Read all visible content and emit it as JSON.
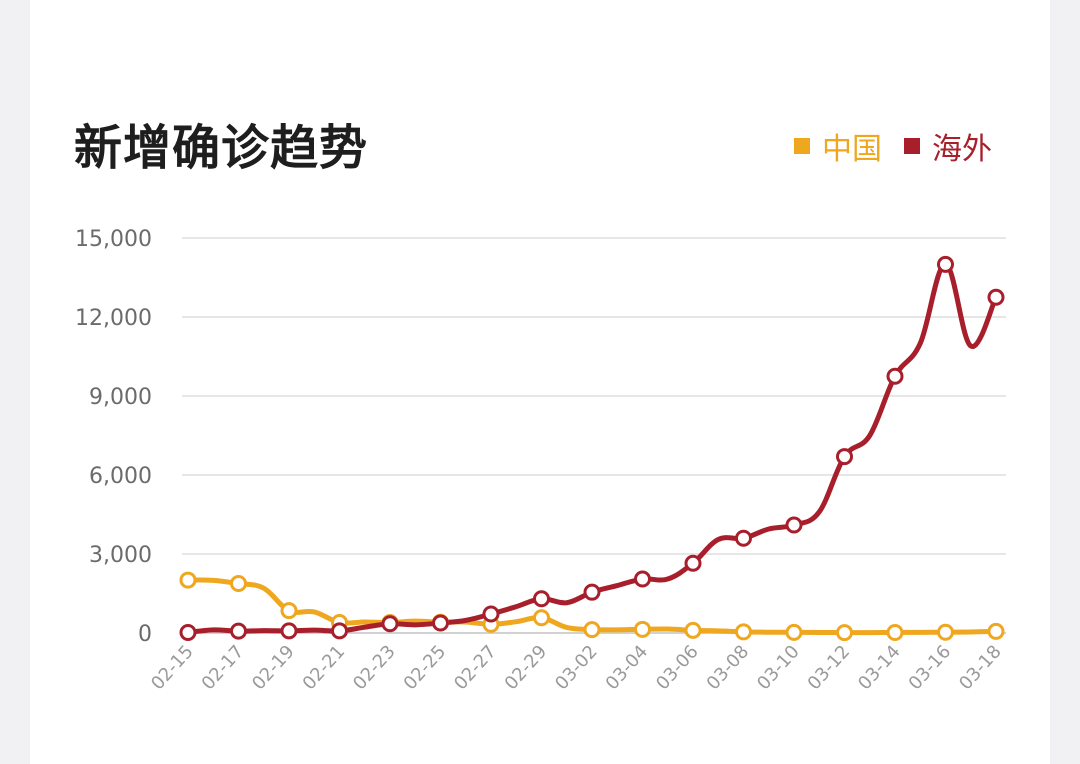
{
  "chart_data": {
    "type": "line",
    "title": "新增确诊趋势",
    "xlabel": "",
    "ylabel": "",
    "ylim": [
      0,
      15000
    ],
    "yticks": [
      0,
      3000,
      6000,
      9000,
      12000,
      15000
    ],
    "ytick_labels": [
      "0",
      "3,000",
      "6,000",
      "9,000",
      "12,000",
      "15,000"
    ],
    "x": [
      "02-15",
      "02-16",
      "02-17",
      "02-18",
      "02-19",
      "02-20",
      "02-21",
      "02-22",
      "02-23",
      "02-24",
      "02-25",
      "02-26",
      "02-27",
      "02-28",
      "02-29",
      "03-01",
      "03-02",
      "03-03",
      "03-04",
      "03-05",
      "03-06",
      "03-07",
      "03-08",
      "03-09",
      "03-10",
      "03-11",
      "03-12",
      "03-13",
      "03-14",
      "03-15",
      "03-16",
      "03-17",
      "03-18"
    ],
    "xtick_labels": [
      "02-15",
      "02-17",
      "02-19",
      "02-21",
      "02-23",
      "02-25",
      "02-27",
      "02-29",
      "03-02",
      "03-04",
      "03-06",
      "03-08",
      "03-10",
      "03-12",
      "03-14",
      "03-16",
      "03-18"
    ],
    "grid": true,
    "legend": "top-right",
    "series": [
      {
        "name": "中国",
        "color": "#efa71f",
        "values": [
          2010,
          2000,
          1880,
          1700,
          850,
          800,
          400,
          420,
          400,
          450,
          410,
          420,
          330,
          430,
          580,
          210,
          130,
          120,
          140,
          150,
          100,
          80,
          45,
          30,
          25,
          20,
          15,
          15,
          20,
          25,
          30,
          40,
          60
        ]
      },
      {
        "name": "海外",
        "color": "#a81f2c",
        "values": [
          20,
          120,
          70,
          90,
          80,
          110,
          80,
          220,
          350,
          310,
          380,
          480,
          720,
          1000,
          1300,
          1150,
          1550,
          1800,
          2050,
          2050,
          2650,
          3550,
          3600,
          3950,
          4100,
          4600,
          6700,
          7500,
          9750,
          11000,
          14000,
          10900,
          12750
        ]
      }
    ]
  }
}
